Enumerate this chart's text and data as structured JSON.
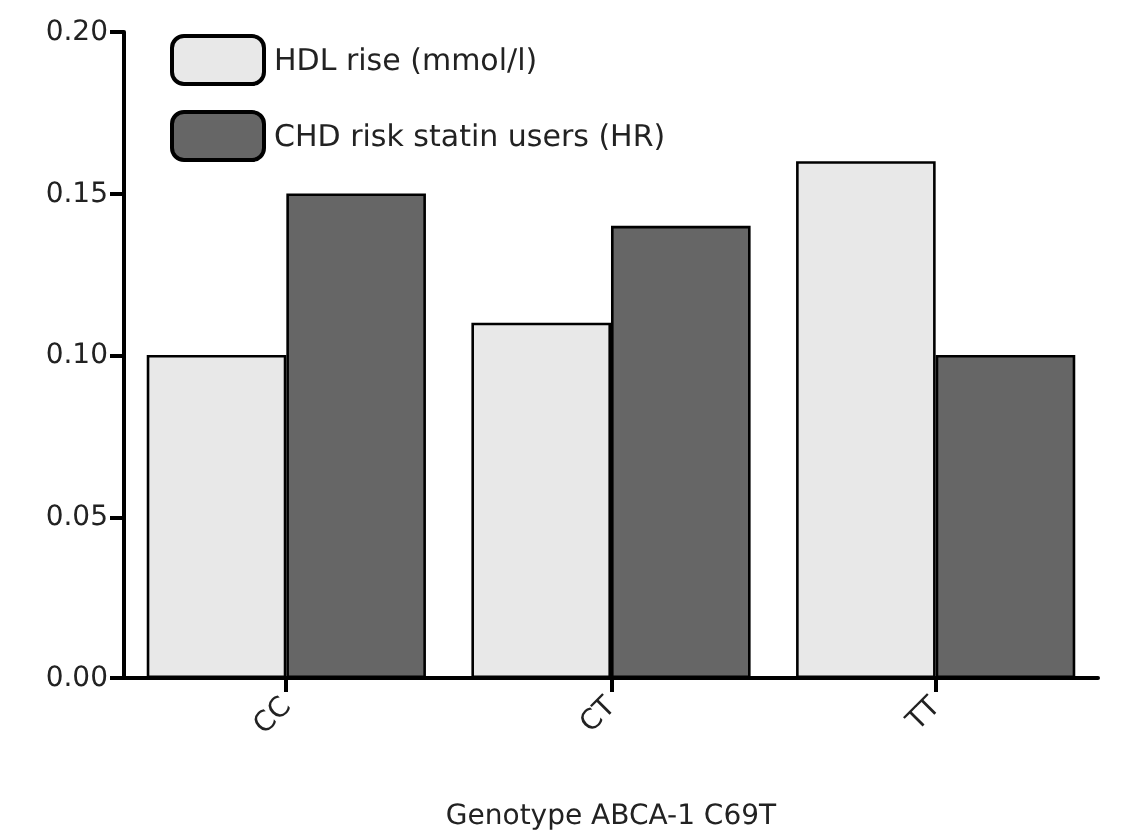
{
  "chart_data": {
    "type": "bar",
    "xlabel": "Genotype ABCA-1 C69T",
    "categories": [
      "CC",
      "CT",
      "TT"
    ],
    "series": [
      {
        "name": "HDL rise (mmol/l)",
        "color": "#e8e8e8",
        "values": [
          0.1,
          0.11,
          0.16
        ]
      },
      {
        "name": "CHD risk statin users (HR)",
        "color": "#666666",
        "values": [
          0.15,
          0.14,
          0.1
        ]
      }
    ],
    "ylim": [
      0,
      0.2
    ],
    "yticks": [
      {
        "value": 0,
        "label": "0.00"
      },
      {
        "value": 0.05,
        "label": "0.05"
      },
      {
        "value": 0.1,
        "label": "0.10"
      },
      {
        "value": 0.15,
        "label": "0.15"
      },
      {
        "value": 0.2,
        "label": "0.20"
      }
    ],
    "grid": false,
    "legend": "top left"
  }
}
